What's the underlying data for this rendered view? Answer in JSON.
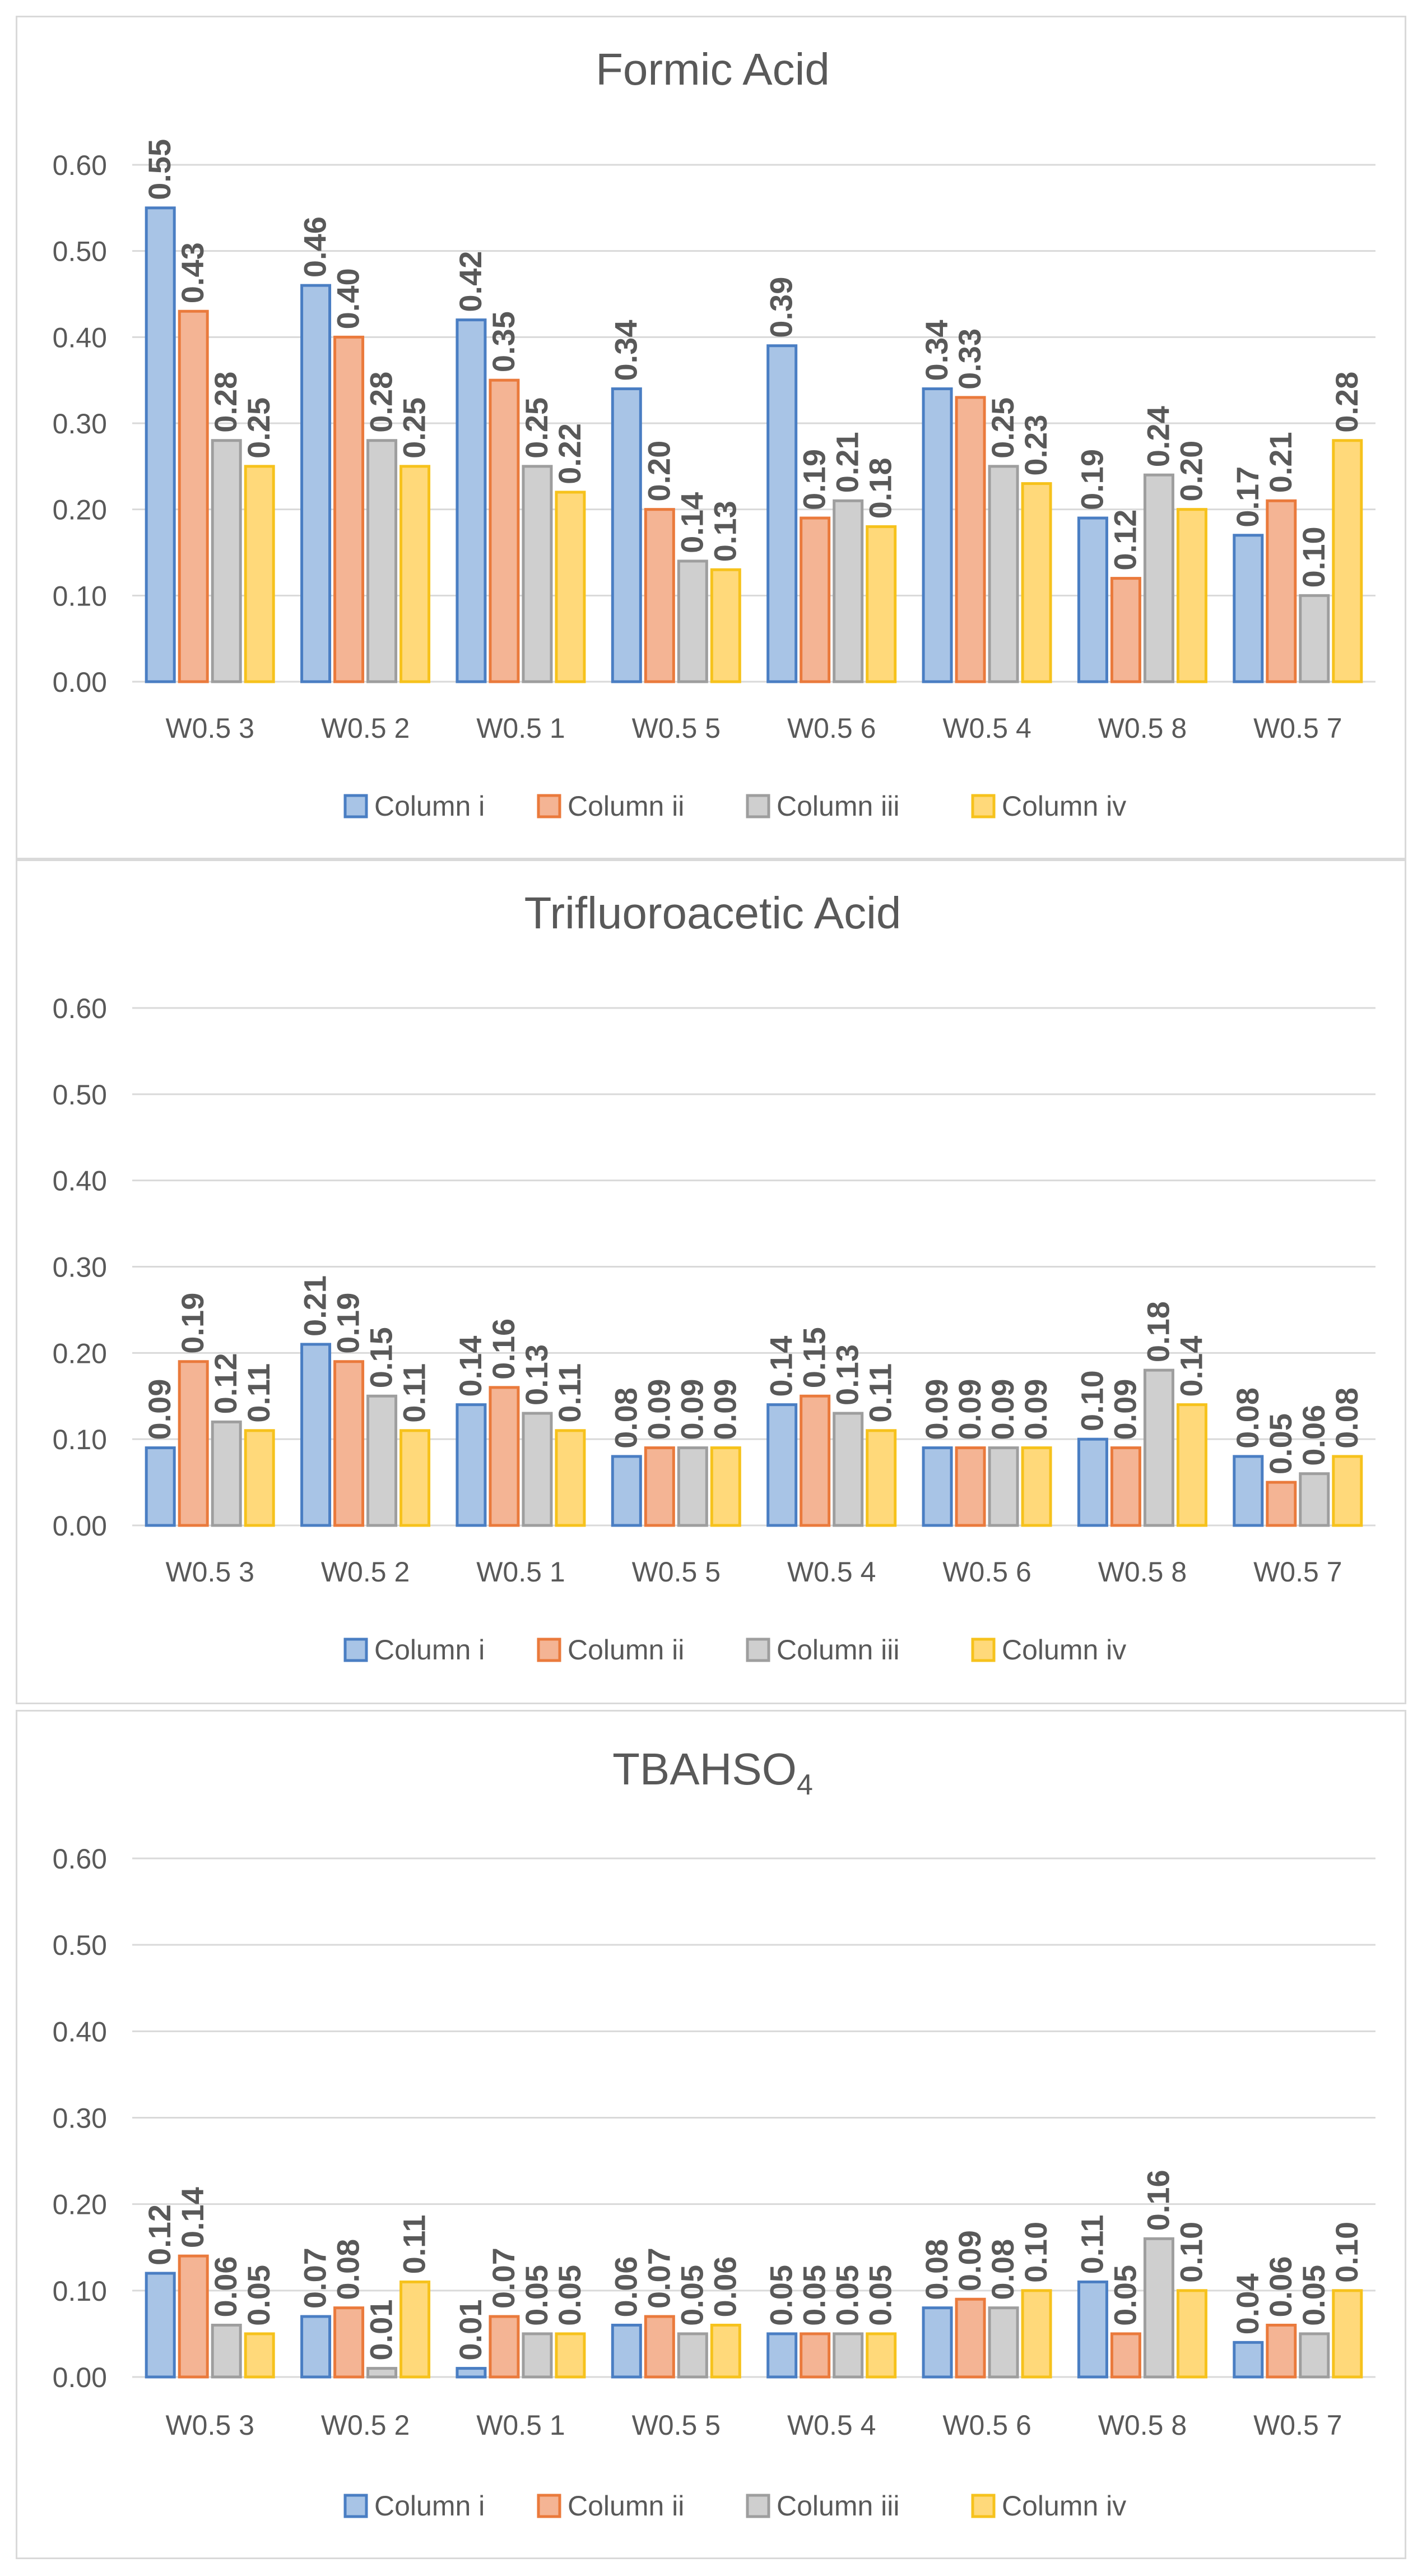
{
  "chart_data": [
    {
      "type": "bar",
      "title": "Formic Acid",
      "xlabel": "",
      "ylabel": "",
      "ylim": [
        0,
        0.6
      ],
      "yticks": [
        "0.00",
        "0.10",
        "0.20",
        "0.30",
        "0.40",
        "0.50",
        "0.60"
      ],
      "grid": true,
      "legend_position": "bottom",
      "categories": [
        "W0.5 3",
        "W0.5 2",
        "W0.5 1",
        "W0.5 5",
        "W0.5 6",
        "W0.5 4",
        "W0.5 8",
        "W0.5 7"
      ],
      "series": [
        {
          "name": "Column i",
          "values": [
            0.55,
            0.46,
            0.42,
            0.34,
            0.39,
            0.34,
            0.19,
            0.17
          ]
        },
        {
          "name": "Column ii",
          "values": [
            0.43,
            0.4,
            0.35,
            0.2,
            0.19,
            0.33,
            0.12,
            0.21
          ]
        },
        {
          "name": "Column iii",
          "values": [
            0.28,
            0.28,
            0.25,
            0.14,
            0.21,
            0.25,
            0.24,
            0.1
          ]
        },
        {
          "name": "Column iv",
          "values": [
            0.25,
            0.25,
            0.22,
            0.13,
            0.18,
            0.23,
            0.2,
            0.28
          ]
        }
      ]
    },
    {
      "type": "bar",
      "title": "Trifluoroacetic Acid",
      "xlabel": "",
      "ylabel": "",
      "ylim": [
        0,
        0.6
      ],
      "yticks": [
        "0.00",
        "0.10",
        "0.20",
        "0.30",
        "0.40",
        "0.50",
        "0.60"
      ],
      "grid": true,
      "legend_position": "bottom",
      "categories": [
        "W0.5 3",
        "W0.5 2",
        "W0.5 1",
        "W0.5 5",
        "W0.5 4",
        "W0.5 6",
        "W0.5 8",
        "W0.5 7"
      ],
      "series": [
        {
          "name": "Column i",
          "values": [
            0.09,
            0.21,
            0.14,
            0.08,
            0.14,
            0.09,
            0.1,
            0.08
          ]
        },
        {
          "name": "Column ii",
          "values": [
            0.19,
            0.19,
            0.16,
            0.09,
            0.15,
            0.09,
            0.09,
            0.05
          ]
        },
        {
          "name": "Column iii",
          "values": [
            0.12,
            0.15,
            0.13,
            0.09,
            0.13,
            0.09,
            0.18,
            0.06
          ]
        },
        {
          "name": "Column iv",
          "values": [
            0.11,
            0.11,
            0.11,
            0.09,
            0.11,
            0.09,
            0.14,
            0.08
          ]
        }
      ]
    },
    {
      "type": "bar",
      "title": "TBAHSO",
      "title_subscript": "4",
      "xlabel": "",
      "ylabel": "",
      "ylim": [
        0,
        0.6
      ],
      "yticks": [
        "0.00",
        "0.10",
        "0.20",
        "0.30",
        "0.40",
        "0.50",
        "0.60"
      ],
      "grid": true,
      "legend_position": "bottom",
      "categories": [
        "W0.5 3",
        "W0.5 2",
        "W0.5 1",
        "W0.5 5",
        "W0.5 4",
        "W0.5 6",
        "W0.5 8",
        "W0.5 7"
      ],
      "series": [
        {
          "name": "Column i",
          "values": [
            0.12,
            0.07,
            0.01,
            0.06,
            0.05,
            0.08,
            0.11,
            0.04
          ]
        },
        {
          "name": "Column ii",
          "values": [
            0.14,
            0.08,
            0.07,
            0.07,
            0.05,
            0.09,
            0.05,
            0.06
          ]
        },
        {
          "name": "Column iii",
          "values": [
            0.06,
            0.01,
            0.05,
            0.05,
            0.05,
            0.08,
            0.16,
            0.05
          ]
        },
        {
          "name": "Column iv",
          "values": [
            0.05,
            0.11,
            0.05,
            0.06,
            0.05,
            0.1,
            0.1,
            0.1
          ]
        }
      ]
    }
  ],
  "colors": {
    "series_fill": [
      "#a8c4e6",
      "#f4b494",
      "#cfcfcf",
      "#ffd97a"
    ],
    "series_stroke": [
      "#4a7ec3",
      "#ea7a3c",
      "#9e9e9e",
      "#f6c21c"
    ],
    "grid": "#d9d9d9",
    "axis_text": "#595959",
    "data_label": "#595959"
  }
}
